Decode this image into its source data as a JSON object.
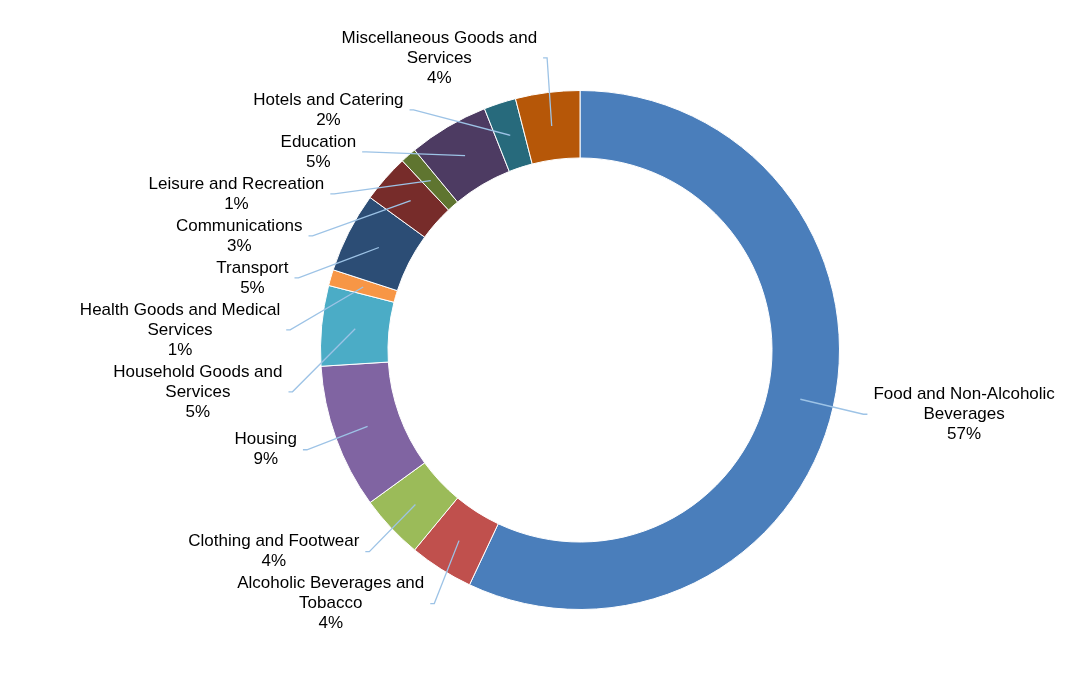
{
  "chart_data": {
    "type": "donut",
    "categories": [
      "Food and Non-Alcoholic Beverages",
      "Alcoholic Beverages and Tobacco",
      "Clothing and Footwear",
      "Housing",
      "Household Goods and Services",
      "Health Goods and Medical Services",
      "Transport",
      "Communications",
      "Leisure and Recreation",
      "Education",
      "Hotels and Catering",
      "Miscellaneous Goods and Services"
    ],
    "values": [
      57,
      4,
      4,
      9,
      5,
      1,
      5,
      3,
      1,
      5,
      2,
      4
    ],
    "value_labels": [
      "57%",
      "4%",
      "4%",
      "9%",
      "5%",
      "1%",
      "5%",
      "3%",
      "1%",
      "5%",
      "2%",
      "4%"
    ],
    "colors": [
      "#4a7ebb",
      "#c0504d",
      "#9bbb59",
      "#8064a2",
      "#4bacc6",
      "#f79646",
      "#2c4d75",
      "#772c2a",
      "#5f7530",
      "#4d3b62",
      "#276a7c",
      "#b65708"
    ],
    "legend": false
  }
}
